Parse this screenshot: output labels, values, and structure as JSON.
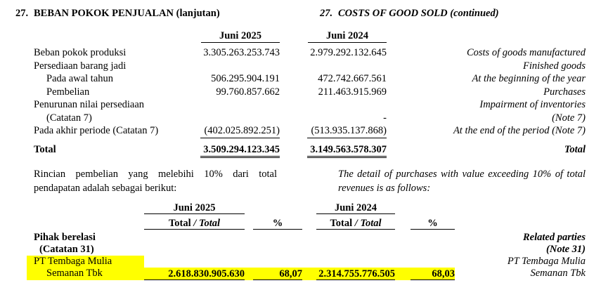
{
  "header": {
    "left_num": "27.",
    "left_title": "BEBAN POKOK PENJUALAN (lanjutan)",
    "right_num": "27.",
    "right_title": "COSTS OF GOOD SOLD (continued)"
  },
  "table1": {
    "col_headers": [
      "Juni 2025",
      "Juni 2024"
    ],
    "rows": [
      {
        "label": "Beban pokok produksi",
        "v2025": "3.305.263.253.743",
        "v2024": "2.979.292.132.645",
        "en": "Costs of goods manufactured"
      },
      {
        "label": "Persediaan barang jadi",
        "v2025": "",
        "v2024": "",
        "en": "Finished goods"
      },
      {
        "label": "Pada awal tahun",
        "v2025": "506.295.904.191",
        "v2024": "472.742.667.561",
        "en": "At the beginning of the year"
      },
      {
        "label": "Pembelian",
        "v2025": "99.760.857.662",
        "v2024": "211.463.915.969",
        "en": "Purchases"
      },
      {
        "label": "Penurunan nilai persediaan",
        "v2025": "",
        "v2024": "",
        "en": "Impairment of inventories"
      },
      {
        "label": "(Catatan 7)",
        "v2025": "",
        "v2024": "-",
        "en": "(Note 7)"
      },
      {
        "label": "Pada akhir periode (Catatan 7)",
        "v2025": "(402.025.892.251)",
        "v2024": "(513.935.137.868)",
        "en": "At the end of the period (Note 7)"
      }
    ],
    "total": {
      "label": "Total",
      "v2025": "3.509.294.123.345",
      "v2024": "3.149.563.578.307",
      "en": "Total"
    }
  },
  "paragraph": {
    "id": "Rincian pembelian yang melebihi 10% dari total pendapatan adalah sebagai berikut:",
    "en": "The detail of purchases with value exceeding 10% of total revenues is as follows:"
  },
  "table2": {
    "col_groups": [
      "Juni 2025",
      "Juni 2024"
    ],
    "sub": {
      "total_id": "Total",
      "sep": " / ",
      "total_en": "Total",
      "pct_1": "%",
      "pct_2": "%"
    },
    "left_heading_1": "Pihak berelasi",
    "left_heading_2": "(Catatan 31)",
    "right_heading_1": "Related parties",
    "right_heading_2": "(Note 31)",
    "row": {
      "label_1": "PT Tembaga Mulia",
      "label_2": "Semanan Tbk",
      "total_2025": "2.618.830.905.630",
      "pct_2025": "68,07",
      "total_2024": "2.314.755.776.505",
      "pct_2024": "68,03",
      "en_1": "PT Tembaga Mulia",
      "en_2": "Semanan Tbk"
    },
    "highlight_color": "#ffff00"
  }
}
